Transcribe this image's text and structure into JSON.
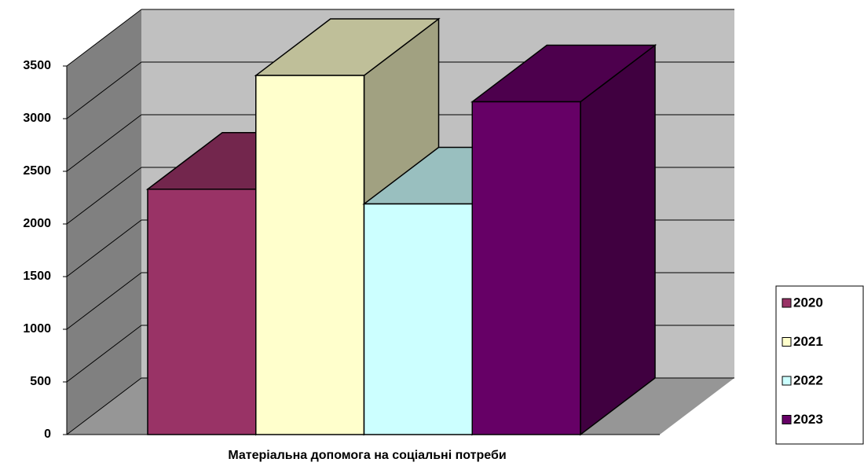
{
  "chart_data": {
    "type": "bar3d",
    "categories": [
      "Матеріальна допомога на соціальні потреби"
    ],
    "series": [
      {
        "name": "2020",
        "color": "#993366",
        "values": [
          2330
        ]
      },
      {
        "name": "2021",
        "color": "#FFFFCC",
        "values": [
          3410
        ]
      },
      {
        "name": "2022",
        "color": "#CCFFFF",
        "values": [
          2190
        ]
      },
      {
        "name": "2023",
        "color": "#660066",
        "values": [
          3160
        ]
      }
    ],
    "ylim": [
      0,
      3500
    ],
    "yticks": [
      0,
      500,
      1000,
      1500,
      2000,
      2500,
      3000,
      3500
    ],
    "grid": true,
    "legend": "right"
  }
}
